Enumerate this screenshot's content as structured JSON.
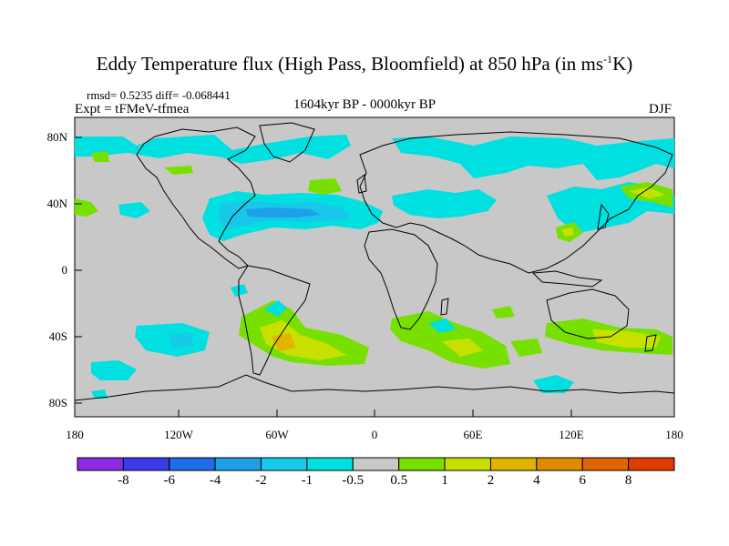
{
  "figure": {
    "title_main": "Eddy Temperature flux (High Pass, Bloomfield) at 850 hPa (in ms",
    "title_sup": "-1",
    "title_end": "K)",
    "stats": "rmsd= 0.5235 diff= -0.068441",
    "expt": "Expt = tFMeV-tfmea",
    "period": "1604kyr BP - 0000kyr BP",
    "season": "DJF"
  },
  "axes": {
    "lat_labels": [
      "80N",
      "40N",
      "0",
      "40S",
      "80S"
    ],
    "lat_values": [
      80,
      40,
      0,
      -40,
      -80
    ],
    "lon_labels": [
      "180",
      "120W",
      "60W",
      "0",
      "60E",
      "120E",
      "180"
    ],
    "lon_values": [
      -180,
      -120,
      -60,
      0,
      60,
      120,
      180
    ]
  },
  "colorbar": {
    "labels": [
      "-8",
      "-6",
      "-4",
      "-2",
      "-1",
      "-0.5",
      "0.5",
      "1",
      "2",
      "4",
      "6",
      "8"
    ],
    "colors": [
      "#8a2be2",
      "#3a3ae8",
      "#1e6ee8",
      "#1ea0e8",
      "#18c8e8",
      "#00e0e0",
      "#c8c8c8",
      "#78e000",
      "#c8e000",
      "#e0b400",
      "#e08a00",
      "#e06400",
      "#e03c00"
    ]
  },
  "anomalies": {
    "negative_strong": "#1ea0e8",
    "negative_weak": "#00e0e0",
    "positive_weak": "#78e000",
    "positive_mid": "#c8e000",
    "positive_strong": "#e0b400",
    "background": "#c8c8c8",
    "coast": "#000000"
  }
}
